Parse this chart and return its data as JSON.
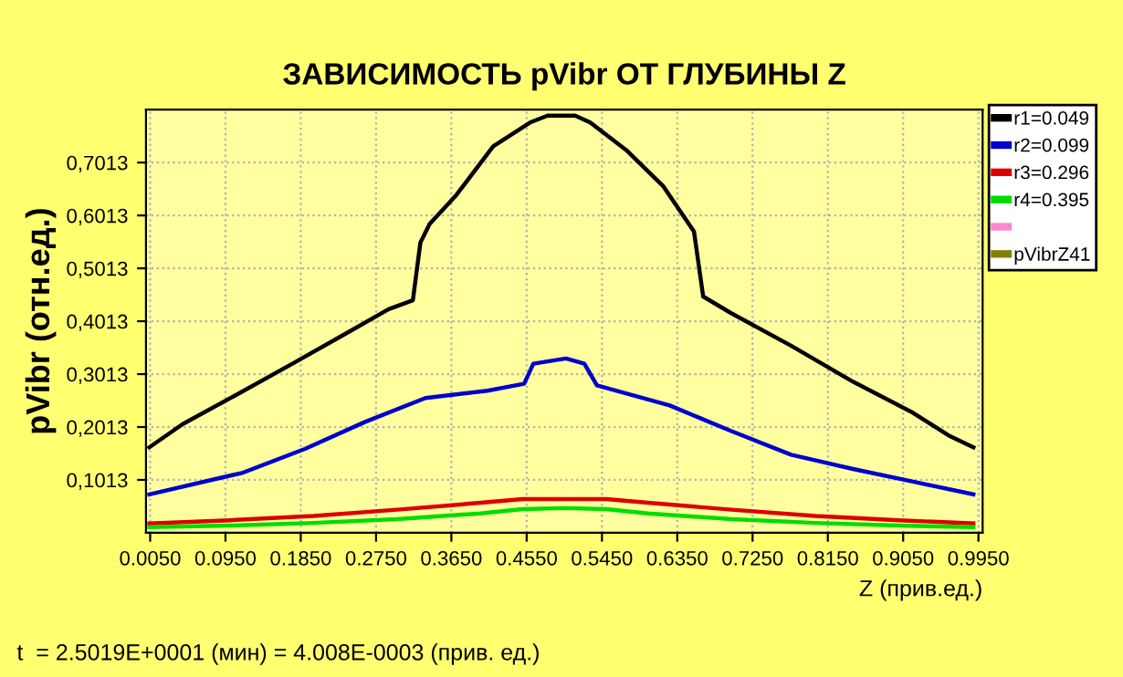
{
  "chart_data": {
    "type": "line",
    "title": "ЗАВИСИМОСТЬ pVibr ОТ ГЛУБИНЫ Z",
    "xlabel": "Z (прив.ед.)",
    "ylabel": "pVibr (отн.ед.)",
    "annotations": [
      "t  = 2.5019E+0001 (мин) = 4.008E-0003 (прив. ед.)"
    ],
    "series": [
      {
        "name": "r1=0.049",
        "color": "#000000",
        "x": [
          0.004,
          0.044,
          0.109,
          0.175,
          0.24,
          0.29,
          0.319,
          0.328,
          0.339,
          0.371,
          0.415,
          0.459,
          0.48,
          0.513,
          0.531,
          0.574,
          0.618,
          0.655,
          0.666,
          0.699,
          0.771,
          0.845,
          0.917,
          0.961,
          0.989
        ],
        "values": [
          0.163,
          0.207,
          0.263,
          0.321,
          0.379,
          0.424,
          0.441,
          0.55,
          0.585,
          0.64,
          0.732,
          0.777,
          0.79,
          0.79,
          0.777,
          0.725,
          0.657,
          0.571,
          0.448,
          0.417,
          0.355,
          0.287,
          0.228,
          0.184,
          0.163
        ]
      },
      {
        "name": "r2=0.099",
        "color": "#0000cc",
        "x": [
          0.004,
          0.116,
          0.19,
          0.262,
          0.334,
          0.408,
          0.452,
          0.463,
          0.502,
          0.524,
          0.539,
          0.626,
          0.699,
          0.771,
          0.845,
          0.917,
          0.989
        ],
        "values": [
          0.074,
          0.115,
          0.16,
          0.211,
          0.256,
          0.27,
          0.283,
          0.321,
          0.331,
          0.321,
          0.28,
          0.242,
          0.194,
          0.149,
          0.122,
          0.098,
          0.074
        ]
      },
      {
        "name": "r3=0.296",
        "color": "#dd0000",
        "x": [
          0.004,
          0.1,
          0.2,
          0.3,
          0.4,
          0.45,
          0.55,
          0.6,
          0.7,
          0.8,
          0.9,
          0.989
        ],
        "values": [
          0.019,
          0.025,
          0.033,
          0.045,
          0.058,
          0.065,
          0.065,
          0.058,
          0.045,
          0.033,
          0.025,
          0.019
        ]
      },
      {
        "name": "r4=0.395",
        "color": "#00dd00",
        "x": [
          0.004,
          0.1,
          0.2,
          0.3,
          0.4,
          0.45,
          0.5,
          0.55,
          0.6,
          0.7,
          0.8,
          0.9,
          0.989
        ],
        "values": [
          0.012,
          0.015,
          0.02,
          0.027,
          0.038,
          0.046,
          0.048,
          0.046,
          0.038,
          0.027,
          0.02,
          0.015,
          0.012
        ]
      },
      {
        "color": "#ff88cc"
      },
      {
        "name": "pVibrZ41",
        "color": "#808000"
      }
    ],
    "xlim": [
      0,
      1
    ],
    "xticks": [
      {
        "value": 0.005,
        "label": "0.0050"
      },
      {
        "value": 0.095,
        "label": "0.0950"
      },
      {
        "value": 0.185,
        "label": "0.1850"
      },
      {
        "value": 0.275,
        "label": "0.2750"
      },
      {
        "value": 0.365,
        "label": "0.3650"
      },
      {
        "value": 0.455,
        "label": "0.4550"
      },
      {
        "value": 0.545,
        "label": "0.5450"
      },
      {
        "value": 0.635,
        "label": "0.6350"
      },
      {
        "value": 0.725,
        "label": "0.7250"
      },
      {
        "value": 0.815,
        "label": "0.8150"
      },
      {
        "value": 0.905,
        "label": "0.9050"
      },
      {
        "value": 0.995,
        "label": "0.9950"
      }
    ],
    "ylim": [
      0.0013,
      0.8013
    ],
    "yticks": [
      {
        "value": 0.1013,
        "label": "0,1013"
      },
      {
        "value": 0.2013,
        "label": "0,2013"
      },
      {
        "value": 0.3013,
        "label": "0,3013"
      },
      {
        "value": 0.4013,
        "label": "0,4013"
      },
      {
        "value": 0.5013,
        "label": "0,5013"
      },
      {
        "value": 0.6013,
        "label": "0,6013"
      },
      {
        "value": 0.7013,
        "label": "0,7013"
      }
    ],
    "grid": true,
    "legend": "right",
    "line_style": "solid",
    "marker": "none"
  }
}
